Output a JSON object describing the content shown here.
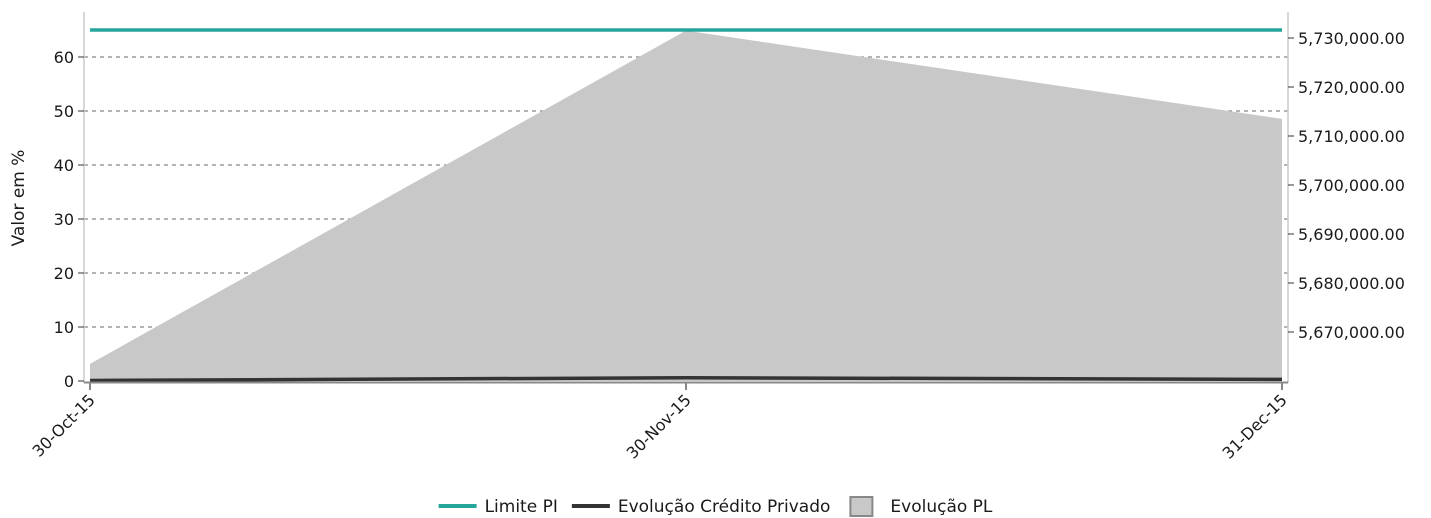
{
  "chart_data": {
    "type": "line",
    "x": [
      "30-Oct-15",
      "30-Nov-15",
      "31-Dec-15"
    ],
    "ylabel": "Valor em %",
    "y_left_lim": [
      0,
      68
    ],
    "y_left_ticks": [
      "0",
      "10",
      "20",
      "30",
      "40",
      "50",
      "60"
    ],
    "y_right_lim": [
      5660000,
      5736000
    ],
    "y_right_ticks": [
      "5,670,000.00",
      "5,680,000.00",
      "5,690,000.00",
      "5,700,000.00",
      "5,710,000.00",
      "5,720,000.00",
      "5,730,000.00"
    ],
    "grid": "horizontal dashed",
    "legend_position": "bottom",
    "series": [
      {
        "name": "Limite PI",
        "axis": "left",
        "kind": "line",
        "color": "#26a69a",
        "values": [
          65,
          65,
          65
        ]
      },
      {
        "name": "Evolução Crédito Privado",
        "axis": "left",
        "kind": "line",
        "color": "#333333",
        "values": [
          0.1,
          0.6,
          0.3
        ]
      },
      {
        "name": "Evolução PL",
        "axis": "right",
        "kind": "area",
        "color": "#c8c8c8",
        "values": [
          5663500,
          5731500,
          5713500
        ]
      }
    ]
  }
}
